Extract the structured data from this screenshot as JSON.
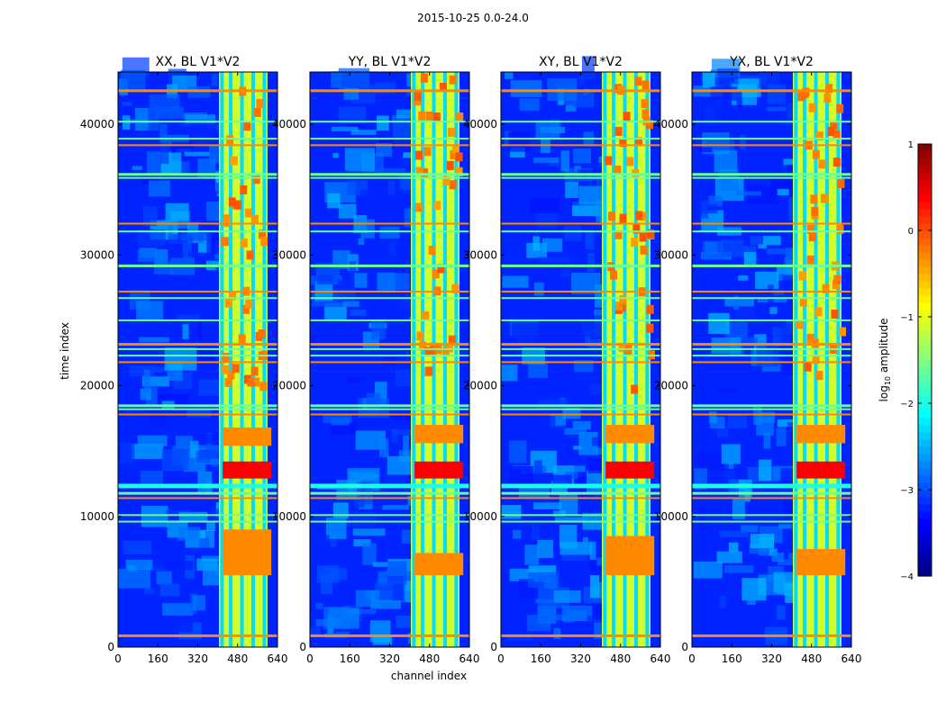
{
  "chart_data": {
    "type": "heatmap",
    "title": "2015-10-25 0.0-24.0",
    "xlabel": "channel index",
    "ylabel": "time index",
    "colorbar": {
      "label_prefix": "log",
      "label_sub": "10",
      "label_suffix": " amplitude",
      "range": [
        -4,
        1
      ],
      "ticks": [
        -4,
        -3,
        -2,
        -1,
        0,
        1
      ],
      "tick_labels": [
        "−4",
        "−3",
        "−2",
        "−1",
        "0",
        "1"
      ],
      "colormap": "jet"
    },
    "xlim": [
      0,
      640
    ],
    "ylim": [
      0,
      44000
    ],
    "x_ticks": [
      0,
      160,
      320,
      480,
      640
    ],
    "y_ticks": [
      0,
      10000,
      20000,
      30000,
      40000
    ],
    "panels": [
      {
        "title": "XX, BL V1*V2",
        "bright_channels": [
          [
            405,
            600
          ]
        ],
        "strong_rows": [
          [
            12900,
            14200
          ],
          [
            15400,
            16800
          ],
          [
            5500,
            9000
          ]
        ]
      },
      {
        "title": "YY, BL V1*V2",
        "bright_channels": [
          [
            405,
            600
          ]
        ],
        "strong_rows": [
          [
            12900,
            14200
          ],
          [
            15600,
            17000
          ],
          [
            5500,
            7200
          ]
        ]
      },
      {
        "title": "XY, BL V1*V2",
        "bright_channels": [
          [
            405,
            600
          ]
        ],
        "strong_rows": [
          [
            12900,
            14200
          ],
          [
            15600,
            17000
          ],
          [
            5500,
            8500
          ]
        ]
      },
      {
        "title": "YX, BL V1*V2",
        "bright_channels": [
          [
            405,
            600
          ]
        ],
        "strong_rows": [
          [
            12900,
            14200
          ],
          [
            15600,
            17000
          ],
          [
            5500,
            7500
          ]
        ]
      }
    ],
    "horizontal_rfi_rows": [
      900,
      9600,
      10100,
      11400,
      11800,
      12300,
      17800,
      18200,
      18500,
      21800,
      22300,
      22800,
      23200,
      25000,
      26700,
      27200,
      29200,
      31800,
      32400,
      35900,
      36200,
      38400,
      38900,
      40200,
      42600
    ]
  }
}
